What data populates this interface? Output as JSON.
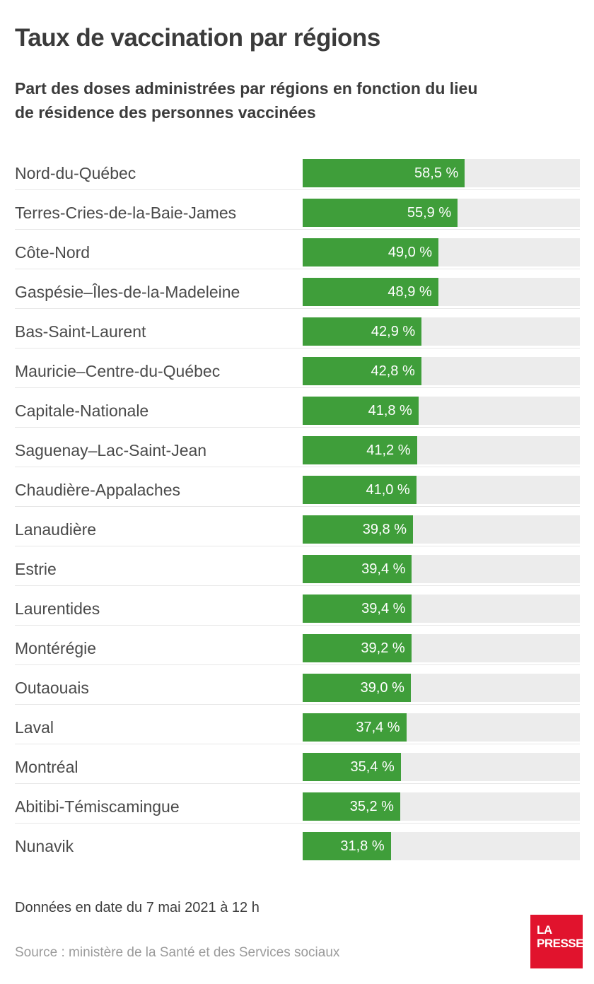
{
  "header": {
    "title": "Taux de vaccination par régions",
    "subtitle_line1": "Part des doses administrées par régions en fonction du lieu",
    "subtitle_line2": "de résidence des personnes vaccinées"
  },
  "chart_data": {
    "type": "bar",
    "orientation": "horizontal",
    "title": "Taux de vaccination par régions",
    "subtitle": "Part des doses administrées par régions en fonction du lieu de résidence des personnes vaccinées",
    "categories": [
      "Nord-du-Québec",
      "Terres-Cries-de-la-Baie-James",
      "Côte-Nord",
      "Gaspésie–Îles-de-la-Madeleine",
      "Bas-Saint-Laurent",
      "Mauricie–Centre-du-Québec",
      "Capitale-Nationale",
      "Saguenay–Lac-Saint-Jean",
      "Chaudière-Appalaches",
      "Lanaudière",
      "Estrie",
      "Laurentides",
      "Montérégie",
      "Outaouais",
      "Laval",
      "Montréal",
      "Abitibi-Témiscamingue",
      "Nunavik"
    ],
    "values": [
      58.5,
      55.9,
      49.0,
      48.9,
      42.9,
      42.8,
      41.8,
      41.2,
      41.0,
      39.8,
      39.4,
      39.4,
      39.2,
      39.0,
      37.4,
      35.4,
      35.2,
      31.8
    ],
    "value_labels": [
      "58,5 %",
      "55,9 %",
      "49,0 %",
      "48,9 %",
      "42,9 %",
      "42,8 %",
      "41,8 %",
      "41,2 %",
      "41,0 %",
      "39,8 %",
      "39,4 %",
      "39,4 %",
      "39,2 %",
      "39,0 %",
      "37,4 %",
      "35,4 %",
      "35,2 %",
      "31,8 %"
    ],
    "xlim": [
      0,
      100
    ],
    "grid": false,
    "legend": false,
    "bar_color": "#3f9e3a",
    "track_color": "#ececec"
  },
  "footer": {
    "data_note": "Données en date du 7 mai 2021 à 12 h",
    "source": "Source : ministère de la Santé et des Services sociaux",
    "logo": {
      "line1": "LA",
      "line2": "PRESSE",
      "color": "#e1132d"
    }
  }
}
